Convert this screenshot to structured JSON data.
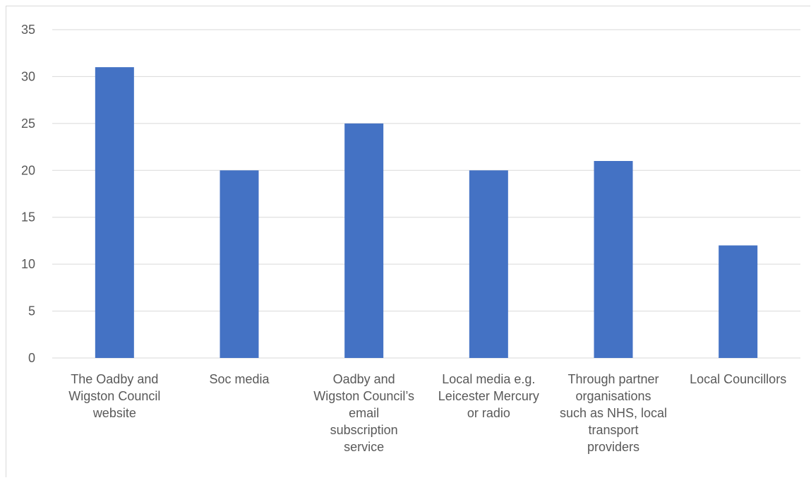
{
  "chart_data": {
    "type": "bar",
    "title": "",
    "xlabel": "",
    "ylabel": "",
    "categories": [
      [
        "The Oadby and",
        "Wigston Council",
        "website"
      ],
      [
        "Soc media"
      ],
      [
        "Oadby and",
        "Wigston Council’s",
        "email",
        "subscription",
        "service"
      ],
      [
        "Local media e.g.",
        "Leicester Mercury",
        "or radio"
      ],
      [
        "Through partner",
        "organisations",
        "such as NHS, local",
        "transport",
        "providers"
      ],
      [
        "Local Councillors"
      ]
    ],
    "values": [
      31,
      20,
      25,
      20,
      21,
      12
    ],
    "ylim": [
      0,
      35
    ],
    "yticks": [
      0,
      5,
      10,
      15,
      20,
      25,
      30,
      35
    ],
    "grid": true,
    "legend": "none",
    "colors": {
      "bar": "#4472c4",
      "grid": "#d9d9d9",
      "axis": "#d9d9d9",
      "text": "#595959"
    }
  }
}
